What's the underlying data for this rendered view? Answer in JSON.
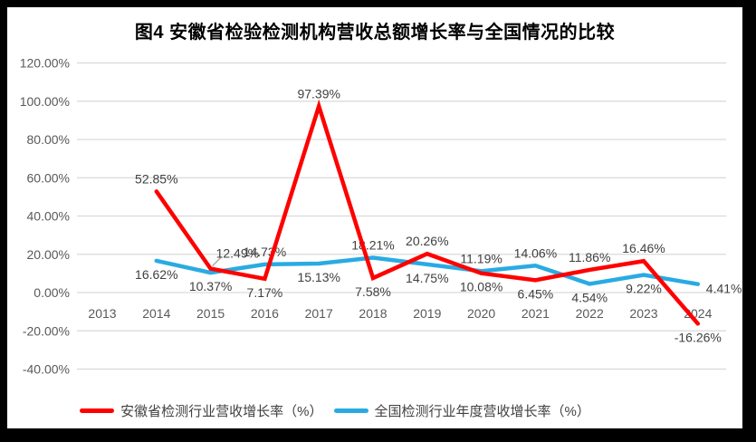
{
  "colors": {
    "anhui_line": "#FF0000",
    "national_line": "#29ABE2",
    "gridline": "#D9D9D9",
    "axis_text": "#595959",
    "data_label_text": "#404040",
    "title_text": "#000000",
    "background": "#FFFFFF",
    "frame": "#000000",
    "leader_line": "#A6A6A6"
  },
  "chart_data": {
    "type": "line",
    "title": "图4 安徽省检验检测机构营收总额增长率与全国情况的比较",
    "x": [
      "2013",
      "2014",
      "2015",
      "2016",
      "2017",
      "2018",
      "2019",
      "2020",
      "2021",
      "2022",
      "2023",
      "2024"
    ],
    "series": [
      {
        "key": "anhui",
        "name": "安徽省检测行业营收增长率（%）",
        "color": "#FF0000",
        "values": [
          null,
          52.85,
          12.49,
          7.17,
          97.39,
          7.58,
          20.26,
          10.08,
          6.45,
          11.86,
          16.46,
          -16.26
        ],
        "labels": [
          null,
          "52.85%",
          "12.49%",
          "7.17%",
          "97.39%",
          "7.58%",
          "20.26%",
          "10.08%",
          "6.45%",
          "11.86%",
          "16.46%",
          "-16.26%"
        ],
        "label_positions": [
          null,
          "above",
          "above-right",
          "below",
          "above",
          "below",
          "above",
          "below",
          "below",
          "above",
          "above",
          "below"
        ]
      },
      {
        "key": "national",
        "name": "全国检测行业年度营收增长率（%）",
        "color": "#29ABE2",
        "values": [
          null,
          16.62,
          10.37,
          14.73,
          15.13,
          18.21,
          14.75,
          11.19,
          14.06,
          4.54,
          9.22,
          4.41
        ],
        "labels": [
          null,
          "16.62%",
          "10.37%",
          "14.73%",
          "15.13%",
          "18.21%",
          "14.75%",
          "11.19%",
          "14.06%",
          "4.54%",
          "9.22%",
          "4.41%"
        ],
        "label_positions": [
          null,
          "below",
          "below",
          "above",
          "below",
          "above",
          "below",
          "above",
          "above",
          "below",
          "below",
          "right"
        ]
      }
    ],
    "ylim": [
      -40,
      120
    ],
    "ytick_step": 20,
    "ytick_labels": [
      "120.00%",
      "100.00%",
      "80.00%",
      "60.00%",
      "40.00%",
      "20.00%",
      "0.00%",
      "-20.00%",
      "-40.00%"
    ],
    "grid": true,
    "legend_position": "bottom",
    "label_leaders": [
      {
        "series": 0,
        "x_index": 2
      }
    ]
  }
}
